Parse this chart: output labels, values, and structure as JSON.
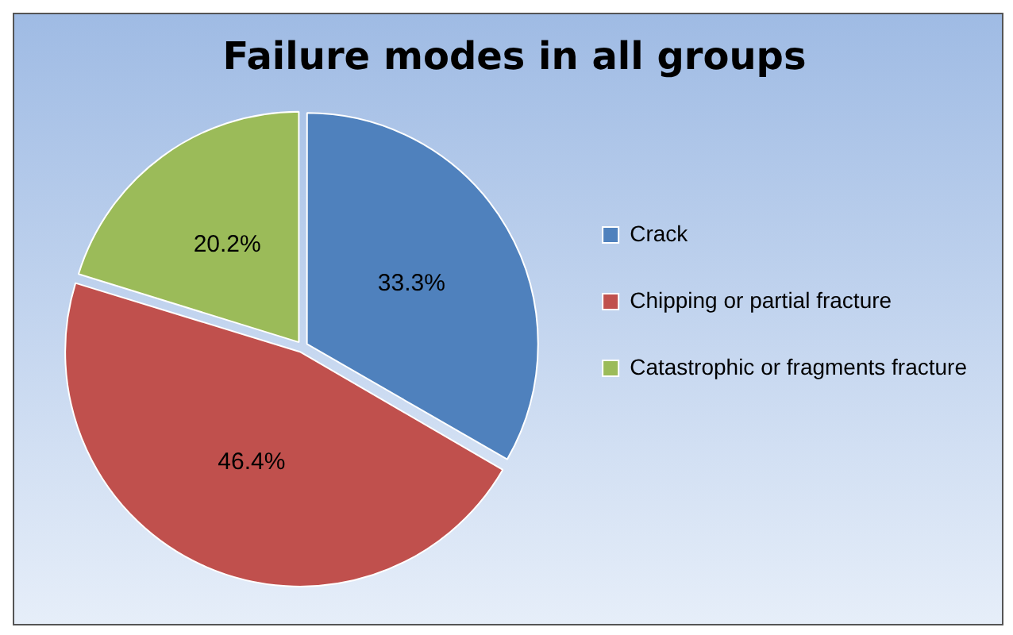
{
  "chart_data": {
    "type": "pie",
    "title": "Failure modes in all groups",
    "categories": [
      "Crack",
      "Chipping or partial fracture",
      "Catastrophic or fragments fracture"
    ],
    "values": [
      33.3,
      46.4,
      20.2
    ],
    "colors": [
      "#4f81bd",
      "#c0504d",
      "#9bbb59"
    ],
    "value_labels": [
      "33.3%",
      "46.4%",
      "20.2%"
    ],
    "legend": "right"
  }
}
